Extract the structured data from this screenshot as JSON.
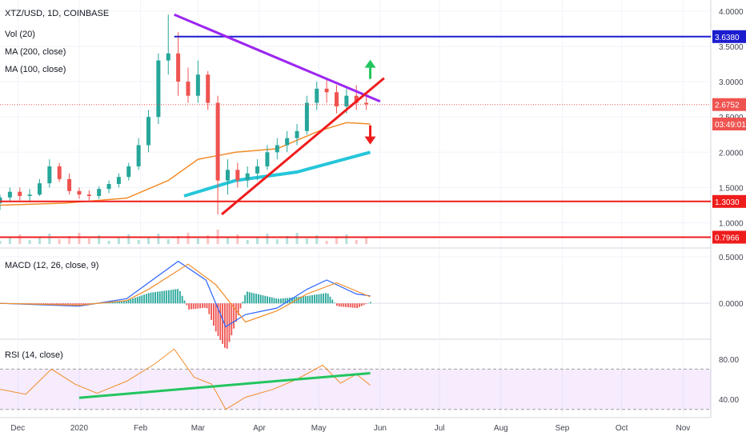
{
  "chart_data": [
    {
      "type": "candlestick",
      "title": "XTZ/USD, 1D, COINBASE",
      "indicators": [
        "Vol (20)",
        "MA (200, close)",
        "MA (100, close)"
      ],
      "ylim": [
        0.7,
        4.1
      ],
      "y_ticks": [
        "4.0000",
        "3.5000",
        "3.0000",
        "2.5000",
        "2.0000",
        "1.5000",
        "1.0000"
      ],
      "price_tags": [
        {
          "label": "3.6380",
          "value": 3.638,
          "color": "#1c1ccf"
        },
        {
          "label": "2.6752",
          "value": 2.6752,
          "color": "#ef5350"
        },
        {
          "label": "03:49:01",
          "value": 2.4,
          "color": "#ef5350"
        },
        {
          "label": "1.3030",
          "value": 1.303,
          "color": "#ef1c1c"
        },
        {
          "label": "0.7966",
          "value": 0.7966,
          "color": "#ef1c1c"
        }
      ],
      "horizontal_lines": [
        {
          "value": 3.638,
          "color": "#1c1ccf",
          "x_start": "2020-02-18"
        },
        {
          "value": 1.303,
          "color": "#ef1c1c",
          "x_start": "2019-11-22"
        },
        {
          "value": 0.7966,
          "color": "#ef1c1c",
          "x_start": "2019-11-22"
        }
      ],
      "trendlines": [
        {
          "from": [
            "2020-02-18",
            3.95
          ],
          "to": [
            "2020-06-01",
            2.72
          ],
          "color": "#9c27f0"
        },
        {
          "from": [
            "2020-03-13",
            1.12
          ],
          "to": [
            "2020-06-03",
            3.05
          ],
          "color": "#ef1c1c"
        }
      ],
      "arrows": [
        {
          "date": "2020-05-27",
          "value": 3.22,
          "direction": "up",
          "color": "#22c55e"
        },
        {
          "date": "2020-05-27",
          "value": 2.2,
          "direction": "down",
          "color": "#ef1c1c"
        }
      ],
      "candles": [
        {
          "date": "2019-11-22",
          "o": 1.28,
          "h": 1.4,
          "l": 1.18,
          "c": 1.36
        },
        {
          "date": "2019-11-27",
          "o": 1.36,
          "h": 1.5,
          "l": 1.3,
          "c": 1.44
        },
        {
          "date": "2019-12-02",
          "o": 1.44,
          "h": 1.5,
          "l": 1.32,
          "c": 1.38
        },
        {
          "date": "2019-12-07",
          "o": 1.38,
          "h": 1.48,
          "l": 1.3,
          "c": 1.4
        },
        {
          "date": "2019-12-12",
          "o": 1.4,
          "h": 1.62,
          "l": 1.38,
          "c": 1.56
        },
        {
          "date": "2019-12-17",
          "o": 1.56,
          "h": 1.9,
          "l": 1.5,
          "c": 1.8
        },
        {
          "date": "2019-12-22",
          "o": 1.8,
          "h": 1.85,
          "l": 1.58,
          "c": 1.62
        },
        {
          "date": "2019-12-27",
          "o": 1.62,
          "h": 1.7,
          "l": 1.4,
          "c": 1.45
        },
        {
          "date": "2020-01-01",
          "o": 1.45,
          "h": 1.5,
          "l": 1.34,
          "c": 1.4
        },
        {
          "date": "2020-01-06",
          "o": 1.4,
          "h": 1.46,
          "l": 1.32,
          "c": 1.38
        },
        {
          "date": "2020-01-11",
          "o": 1.38,
          "h": 1.52,
          "l": 1.34,
          "c": 1.48
        },
        {
          "date": "2020-01-16",
          "o": 1.48,
          "h": 1.6,
          "l": 1.42,
          "c": 1.55
        },
        {
          "date": "2020-01-21",
          "o": 1.55,
          "h": 1.7,
          "l": 1.5,
          "c": 1.65
        },
        {
          "date": "2020-01-26",
          "o": 1.65,
          "h": 1.85,
          "l": 1.6,
          "c": 1.8
        },
        {
          "date": "2020-01-31",
          "o": 1.8,
          "h": 2.2,
          "l": 1.75,
          "c": 2.1
        },
        {
          "date": "2020-02-05",
          "o": 2.1,
          "h": 2.6,
          "l": 2.0,
          "c": 2.5
        },
        {
          "date": "2020-02-10",
          "o": 2.5,
          "h": 3.4,
          "l": 2.4,
          "c": 3.3
        },
        {
          "date": "2020-02-15",
          "o": 3.3,
          "h": 3.95,
          "l": 3.1,
          "c": 3.4
        },
        {
          "date": "2020-02-20",
          "o": 3.4,
          "h": 3.7,
          "l": 2.8,
          "c": 3.0
        },
        {
          "date": "2020-02-25",
          "o": 3.0,
          "h": 3.2,
          "l": 2.7,
          "c": 2.8
        },
        {
          "date": "2020-03-01",
          "o": 2.8,
          "h": 3.3,
          "l": 2.7,
          "c": 3.1
        },
        {
          "date": "2020-03-06",
          "o": 3.1,
          "h": 3.15,
          "l": 2.6,
          "c": 2.7
        },
        {
          "date": "2020-03-11",
          "o": 2.7,
          "h": 2.8,
          "l": 1.12,
          "c": 1.6
        },
        {
          "date": "2020-03-16",
          "o": 1.6,
          "h": 1.9,
          "l": 1.4,
          "c": 1.75
        },
        {
          "date": "2020-03-21",
          "o": 1.75,
          "h": 1.85,
          "l": 1.5,
          "c": 1.6
        },
        {
          "date": "2020-03-26",
          "o": 1.6,
          "h": 1.8,
          "l": 1.5,
          "c": 1.7
        },
        {
          "date": "2020-03-31",
          "o": 1.7,
          "h": 1.9,
          "l": 1.6,
          "c": 1.8
        },
        {
          "date": "2020-04-05",
          "o": 1.8,
          "h": 2.1,
          "l": 1.75,
          "c": 2.0
        },
        {
          "date": "2020-04-10",
          "o": 2.0,
          "h": 2.2,
          "l": 1.9,
          "c": 2.1
        },
        {
          "date": "2020-04-15",
          "o": 2.1,
          "h": 2.3,
          "l": 2.0,
          "c": 2.2
        },
        {
          "date": "2020-04-20",
          "o": 2.2,
          "h": 2.4,
          "l": 2.1,
          "c": 2.3
        },
        {
          "date": "2020-04-25",
          "o": 2.3,
          "h": 2.8,
          "l": 2.25,
          "c": 2.7
        },
        {
          "date": "2020-04-30",
          "o": 2.7,
          "h": 3.0,
          "l": 2.6,
          "c": 2.9
        },
        {
          "date": "2020-05-05",
          "o": 2.9,
          "h": 3.05,
          "l": 2.7,
          "c": 2.85
        },
        {
          "date": "2020-05-10",
          "o": 2.85,
          "h": 2.95,
          "l": 2.55,
          "c": 2.65
        },
        {
          "date": "2020-05-15",
          "o": 2.65,
          "h": 2.9,
          "l": 2.55,
          "c": 2.8
        },
        {
          "date": "2020-05-20",
          "o": 2.8,
          "h": 2.95,
          "l": 2.6,
          "c": 2.7
        },
        {
          "date": "2020-05-25",
          "o": 2.7,
          "h": 2.85,
          "l": 2.6,
          "c": 2.68
        }
      ],
      "ma200": {
        "color": "#26c6da",
        "points": [
          [
            "2020-02-23",
            1.38
          ],
          [
            "2020-03-20",
            1.6
          ],
          [
            "2020-04-20",
            1.72
          ],
          [
            "2020-05-27",
            2.0
          ]
        ]
      },
      "ma100": {
        "color": "#f28c28",
        "points": [
          [
            "2019-11-22",
            1.25
          ],
          [
            "2019-12-25",
            1.28
          ],
          [
            "2020-01-25",
            1.35
          ],
          [
            "2020-02-15",
            1.6
          ],
          [
            "2020-03-01",
            1.9
          ],
          [
            "2020-03-20",
            2.0
          ],
          [
            "2020-04-10",
            2.05
          ],
          [
            "2020-05-01",
            2.3
          ],
          [
            "2020-05-15",
            2.42
          ],
          [
            "2020-05-27",
            2.4
          ]
        ]
      }
    },
    {
      "type": "line",
      "title": "MACD (12, 26, close, 9)",
      "ylim": [
        -0.35,
        0.55
      ],
      "y_ticks": [
        "0.5000",
        "0.0000"
      ],
      "series": [
        {
          "color": "#2962ff",
          "points": [
            [
              "2019-11-22",
              0.0
            ],
            [
              "2020-01-01",
              -0.03
            ],
            [
              "2020-01-25",
              0.05
            ],
            [
              "2020-02-05",
              0.22
            ],
            [
              "2020-02-20",
              0.45
            ],
            [
              "2020-03-05",
              0.25
            ],
            [
              "2020-03-15",
              -0.25
            ],
            [
              "2020-03-25",
              -0.12
            ],
            [
              "2020-04-10",
              -0.05
            ],
            [
              "2020-04-25",
              0.15
            ],
            [
              "2020-05-05",
              0.25
            ],
            [
              "2020-05-20",
              0.1
            ],
            [
              "2020-05-27",
              0.08
            ]
          ]
        },
        {
          "color": "#f28c28",
          "points": [
            [
              "2019-11-22",
              0.0
            ],
            [
              "2020-01-01",
              -0.02
            ],
            [
              "2020-01-25",
              0.03
            ],
            [
              "2020-02-05",
              0.15
            ],
            [
              "2020-02-25",
              0.42
            ],
            [
              "2020-03-10",
              0.2
            ],
            [
              "2020-03-25",
              -0.2
            ],
            [
              "2020-04-10",
              -0.08
            ],
            [
              "2020-04-25",
              0.1
            ],
            [
              "2020-05-10",
              0.22
            ],
            [
              "2020-05-27",
              0.07
            ]
          ]
        }
      ]
    },
    {
      "type": "line",
      "title": "RSI (14, close)",
      "ylim": [
        25,
        95
      ],
      "y_ticks": [
        "80.00",
        "40.00"
      ],
      "band": [
        30,
        70
      ],
      "trendline": {
        "from": [
          "2020-01-01",
          41.5
        ],
        "to": [
          "2020-05-27",
          66
        ],
        "color": "#22c55e"
      },
      "points": [
        [
          "2019-11-22",
          50
        ],
        [
          "2019-12-05",
          45
        ],
        [
          "2019-12-18",
          70
        ],
        [
          "2019-12-30",
          55
        ],
        [
          "2020-01-10",
          46
        ],
        [
          "2020-01-25",
          58
        ],
        [
          "2020-02-08",
          75
        ],
        [
          "2020-02-18",
          90
        ],
        [
          "2020-02-28",
          62
        ],
        [
          "2020-03-08",
          55
        ],
        [
          "2020-03-15",
          30
        ],
        [
          "2020-03-25",
          42
        ],
        [
          "2020-04-08",
          50
        ],
        [
          "2020-04-20",
          60
        ],
        [
          "2020-05-03",
          74
        ],
        [
          "2020-05-12",
          56
        ],
        [
          "2020-05-20",
          65
        ],
        [
          "2020-05-27",
          54
        ]
      ]
    }
  ],
  "x_axis": {
    "labels": [
      "Dec",
      "2020",
      "Feb",
      "Mar",
      "Apr",
      "May",
      "Jun",
      "Jul",
      "Aug",
      "Sep",
      "Oct",
      "Nov"
    ]
  }
}
